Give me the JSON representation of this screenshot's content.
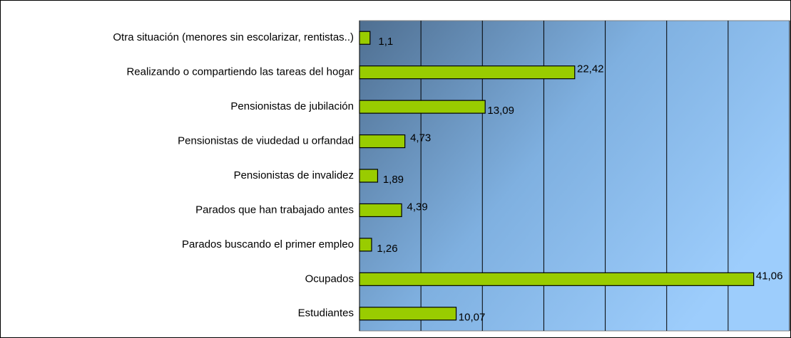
{
  "chart_data": {
    "type": "barh",
    "categories": [
      "Otra situación (menores sin escolarizar, rentistas..)",
      "Realizando o compartiendo las tareas del hogar",
      "Pensionistas de jubilación",
      "Pensionistas de viudedad u orfandad",
      "Pensionistas de invalidez",
      "Parados que han trabajado antes",
      "Parados buscando el primer empleo",
      "Ocupados",
      "Estudiantes"
    ],
    "values": [
      1.1,
      22.42,
      13.09,
      4.73,
      1.89,
      4.39,
      1.26,
      41.06,
      10.07
    ],
    "value_labels": [
      "1,1",
      "22,42",
      "13,09",
      "4,73",
      "1,89",
      "4,39",
      "1,26",
      "41,06",
      "10,07"
    ],
    "color": "#99cc00",
    "xlim": [
      0,
      44.8
    ],
    "xticks": [
      0,
      6.4,
      12.8,
      19.2,
      25.6,
      32,
      38.4,
      44.8
    ],
    "grid": true
  }
}
